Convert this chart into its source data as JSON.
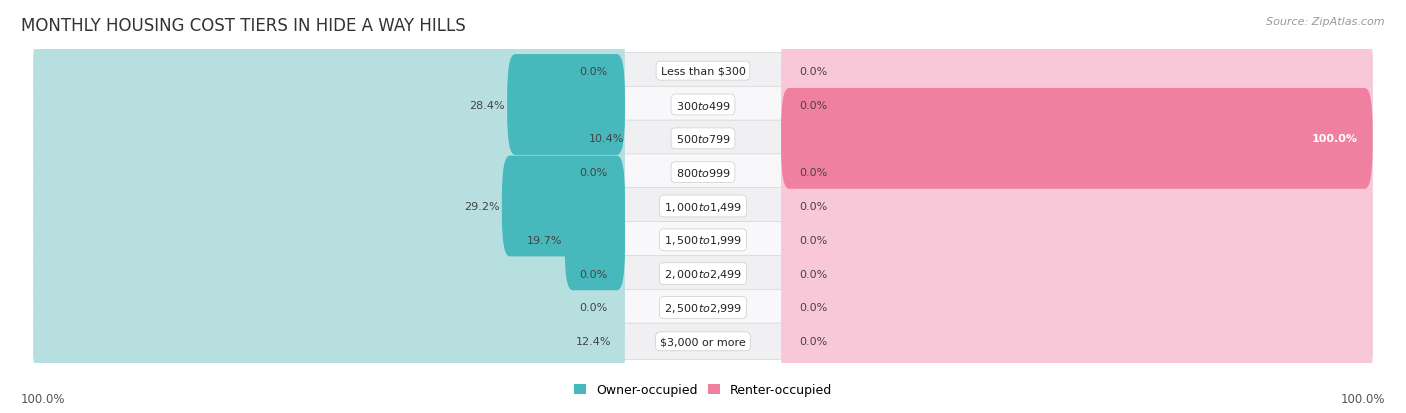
{
  "title": "MONTHLY HOUSING COST TIERS IN HIDE A WAY HILLS",
  "source": "Source: ZipAtlas.com",
  "categories": [
    "Less than $300",
    "$300 to $499",
    "$500 to $799",
    "$800 to $999",
    "$1,000 to $1,499",
    "$1,500 to $1,999",
    "$2,000 to $2,499",
    "$2,500 to $2,999",
    "$3,000 or more"
  ],
  "owner_values": [
    0.0,
    28.4,
    10.4,
    0.0,
    29.2,
    19.7,
    0.0,
    0.0,
    12.4
  ],
  "renter_values": [
    0.0,
    0.0,
    100.0,
    0.0,
    0.0,
    0.0,
    0.0,
    0.0,
    0.0
  ],
  "owner_color": "#47b8bc",
  "renter_color": "#f080a0",
  "bar_bg_owner": "#b8dfe0",
  "bar_bg_renter": "#f8c8d8",
  "row_bg_even": "#f0f0f3",
  "row_bg_odd": "#f8f8fb",
  "axis_max": 100.0,
  "title_fontsize": 12,
  "label_fontsize": 8,
  "cat_fontsize": 8,
  "legend_fontsize": 9,
  "footer_fontsize": 8.5,
  "source_fontsize": 8
}
